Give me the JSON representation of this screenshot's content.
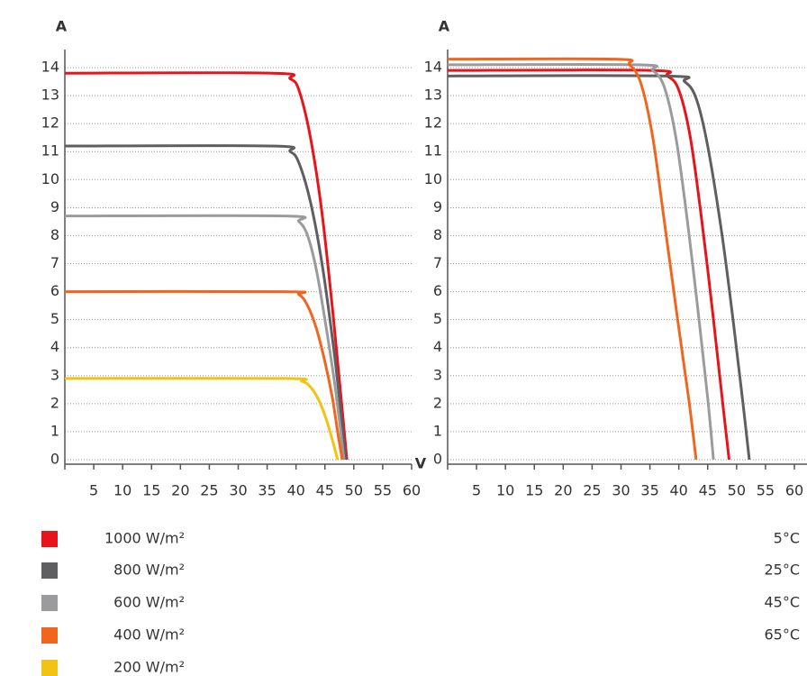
{
  "chart_data": [
    {
      "type": "line",
      "y_label": "A",
      "x_label": "V",
      "xlim": [
        0,
        60
      ],
      "xticks": [
        5,
        10,
        15,
        20,
        25,
        30,
        35,
        40,
        45,
        50,
        55,
        60
      ],
      "ylim": [
        0,
        14
      ],
      "yticks": [
        0,
        1,
        2,
        3,
        4,
        5,
        6,
        7,
        8,
        9,
        10,
        11,
        12,
        13,
        14
      ],
      "grid": true,
      "series": [
        {
          "name": "1000 W/m²",
          "color": "#e8141b",
          "x": [
            0,
            36,
            39,
            40.5,
            42.5,
            44.5,
            46.5,
            47.8,
            48.8
          ],
          "values": [
            13.8,
            13.8,
            13.6,
            13.2,
            11.5,
            8.8,
            5.0,
            2.2,
            0
          ]
        },
        {
          "name": "800 W/m²",
          "color": "#5f5f62",
          "x": [
            0,
            36,
            39,
            40.5,
            42.5,
            44.5,
            46.5,
            47.7,
            48.6
          ],
          "values": [
            11.2,
            11.2,
            11.0,
            10.6,
            9.2,
            7.0,
            4.0,
            1.8,
            0
          ]
        },
        {
          "name": "600 W/m²",
          "color": "#9b9b9e",
          "x": [
            0,
            38,
            40.5,
            42,
            43.5,
            45,
            46.5,
            47.5,
            48.3
          ],
          "values": [
            8.7,
            8.7,
            8.5,
            8.0,
            6.8,
            5.0,
            3.0,
            1.4,
            0
          ]
        },
        {
          "name": "400 W/m²",
          "color": "#f0661e",
          "x": [
            0,
            38,
            40.5,
            42,
            43.5,
            45,
            46.3,
            47.2,
            48
          ],
          "values": [
            6.0,
            6.0,
            5.9,
            5.5,
            4.7,
            3.5,
            2.2,
            1.0,
            0
          ]
        },
        {
          "name": "200 W/m²",
          "color": "#f2c314",
          "x": [
            0,
            38,
            41,
            42.5,
            44,
            45.3,
            46.3,
            47.2
          ],
          "values": [
            2.9,
            2.9,
            2.8,
            2.6,
            2.1,
            1.4,
            0.7,
            0
          ]
        }
      ]
    },
    {
      "type": "line",
      "y_label": "A",
      "xlim": [
        0,
        60
      ],
      "xticks": [
        5,
        10,
        15,
        20,
        25,
        30,
        35,
        40,
        45,
        50,
        55,
        60
      ],
      "ylim": [
        0,
        14
      ],
      "yticks": [
        0,
        1,
        2,
        3,
        4,
        5,
        6,
        7,
        8,
        9,
        10,
        11,
        12,
        13,
        14
      ],
      "grid": true,
      "series": [
        {
          "name": "5°C",
          "color": "#e8141b",
          "x": [
            0,
            35,
            38,
            40,
            42,
            44,
            46,
            47.5,
            48.7
          ],
          "values": [
            13.9,
            13.9,
            13.7,
            13.2,
            11.5,
            8.5,
            5,
            2.2,
            0
          ]
        },
        {
          "name": "25°C",
          "color": "#5f5f62",
          "x": [
            0,
            38,
            41,
            43,
            45,
            47.5,
            49.5,
            51,
            52.2
          ],
          "values": [
            13.7,
            13.7,
            13.5,
            12.9,
            11.2,
            8.0,
            4.8,
            2.2,
            0
          ]
        },
        {
          "name": "45°C",
          "color": "#9b9b9e",
          "x": [
            0,
            33,
            35.5,
            37.5,
            39.5,
            41.5,
            43.5,
            45,
            46
          ],
          "values": [
            14.1,
            14.1,
            13.9,
            13.3,
            11.5,
            8.5,
            5,
            2.2,
            0
          ]
        },
        {
          "name": "65°C",
          "color": "#f0661e",
          "x": [
            0,
            29,
            31.5,
            33.5,
            35.5,
            37.5,
            39.8,
            41.7,
            43
          ],
          "values": [
            14.3,
            14.3,
            14.1,
            13.4,
            11.5,
            8.5,
            5,
            2.2,
            0
          ]
        }
      ]
    }
  ]
}
